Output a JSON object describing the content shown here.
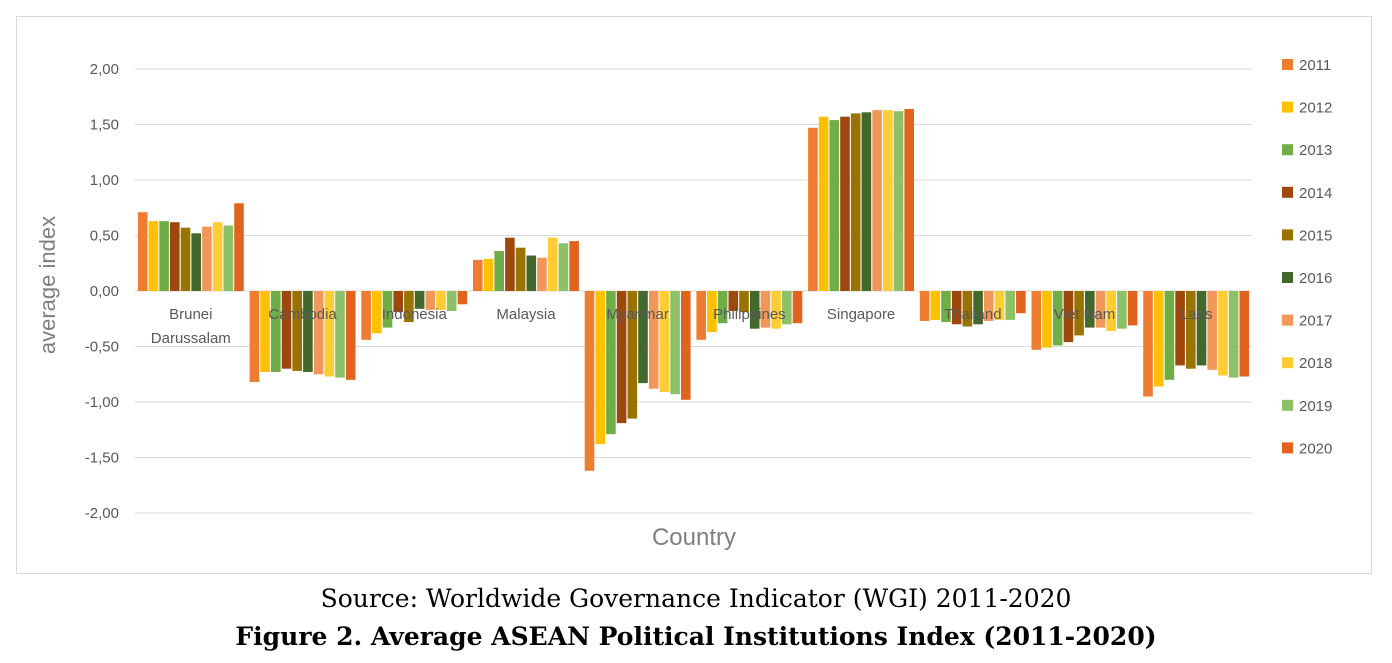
{
  "chart_data": {
    "type": "bar",
    "title": "",
    "xlabel": "Country",
    "ylabel": "average index",
    "ylim": [
      -2.0,
      2.0
    ],
    "yticks": [
      "2,00",
      "1,50",
      "1,00",
      "0,50",
      "0,00",
      "-0,50",
      "-1,00",
      "-1,50",
      "-2,00"
    ],
    "grid": true,
    "legend_position": "right",
    "categories": [
      "Brunei Darussalam",
      "Cambodia",
      "Indonesia",
      "Malaysia",
      "Myanmar",
      "Philippines",
      "Singapore",
      "Thailand",
      "Viet Nam",
      "Laos"
    ],
    "category_lines": [
      [
        "Brunei",
        "Darussalam"
      ],
      [
        "Cambodia"
      ],
      [
        "Indonesia"
      ],
      [
        "Malaysia"
      ],
      [
        "Myanmar"
      ],
      [
        "Philippines"
      ],
      [
        "Singapore"
      ],
      [
        "Thailand"
      ],
      [
        "Viet Nam"
      ],
      [
        "Laos"
      ]
    ],
    "series": [
      {
        "name": "2011",
        "color": "#ED7D31",
        "values": [
          0.71,
          -0.82,
          -0.44,
          0.28,
          -1.62,
          -0.44,
          1.47,
          -0.27,
          -0.53,
          -0.95
        ]
      },
      {
        "name": "2012",
        "color": "#FFC000",
        "values": [
          0.63,
          -0.73,
          -0.38,
          0.29,
          -1.38,
          -0.37,
          1.57,
          -0.26,
          -0.51,
          -0.86
        ]
      },
      {
        "name": "2013",
        "color": "#70AD47",
        "values": [
          0.63,
          -0.73,
          -0.33,
          0.36,
          -1.29,
          -0.29,
          1.54,
          -0.28,
          -0.49,
          -0.8
        ]
      },
      {
        "name": "2014",
        "color": "#9E480E",
        "values": [
          0.62,
          -0.7,
          -0.19,
          0.48,
          -1.19,
          -0.18,
          1.57,
          -0.3,
          -0.46,
          -0.67
        ]
      },
      {
        "name": "2015",
        "color": "#997300",
        "values": [
          0.57,
          -0.72,
          -0.28,
          0.39,
          -1.15,
          -0.19,
          1.6,
          -0.32,
          -0.4,
          -0.7
        ]
      },
      {
        "name": "2016",
        "color": "#43682B",
        "values": [
          0.52,
          -0.73,
          -0.16,
          0.32,
          -0.83,
          -0.34,
          1.61,
          -0.3,
          -0.33,
          -0.67
        ]
      },
      {
        "name": "2017",
        "color": "#F1975A",
        "values": [
          0.58,
          -0.75,
          -0.17,
          0.3,
          -0.88,
          -0.33,
          1.63,
          -0.27,
          -0.33,
          -0.71
        ]
      },
      {
        "name": "2018",
        "color": "#FFCD33",
        "values": [
          0.62,
          -0.77,
          -0.17,
          0.48,
          -0.91,
          -0.34,
          1.63,
          -0.26,
          -0.36,
          -0.76
        ]
      },
      {
        "name": "2019",
        "color": "#8CC168",
        "values": [
          0.59,
          -0.78,
          -0.18,
          0.43,
          -0.93,
          -0.3,
          1.62,
          -0.26,
          -0.34,
          -0.78
        ]
      },
      {
        "name": "2020",
        "color": "#E0631E",
        "values": [
          0.79,
          -0.8,
          -0.12,
          0.45,
          -0.98,
          -0.29,
          1.64,
          -0.2,
          -0.31,
          -0.77
        ]
      }
    ]
  },
  "caption": {
    "source": "Source: Worldwide Governance Indicator (WGI) 2011-2020",
    "figure_title": "Figure 2. Average ASEAN Political Institutions Index (2011-2020)"
  }
}
